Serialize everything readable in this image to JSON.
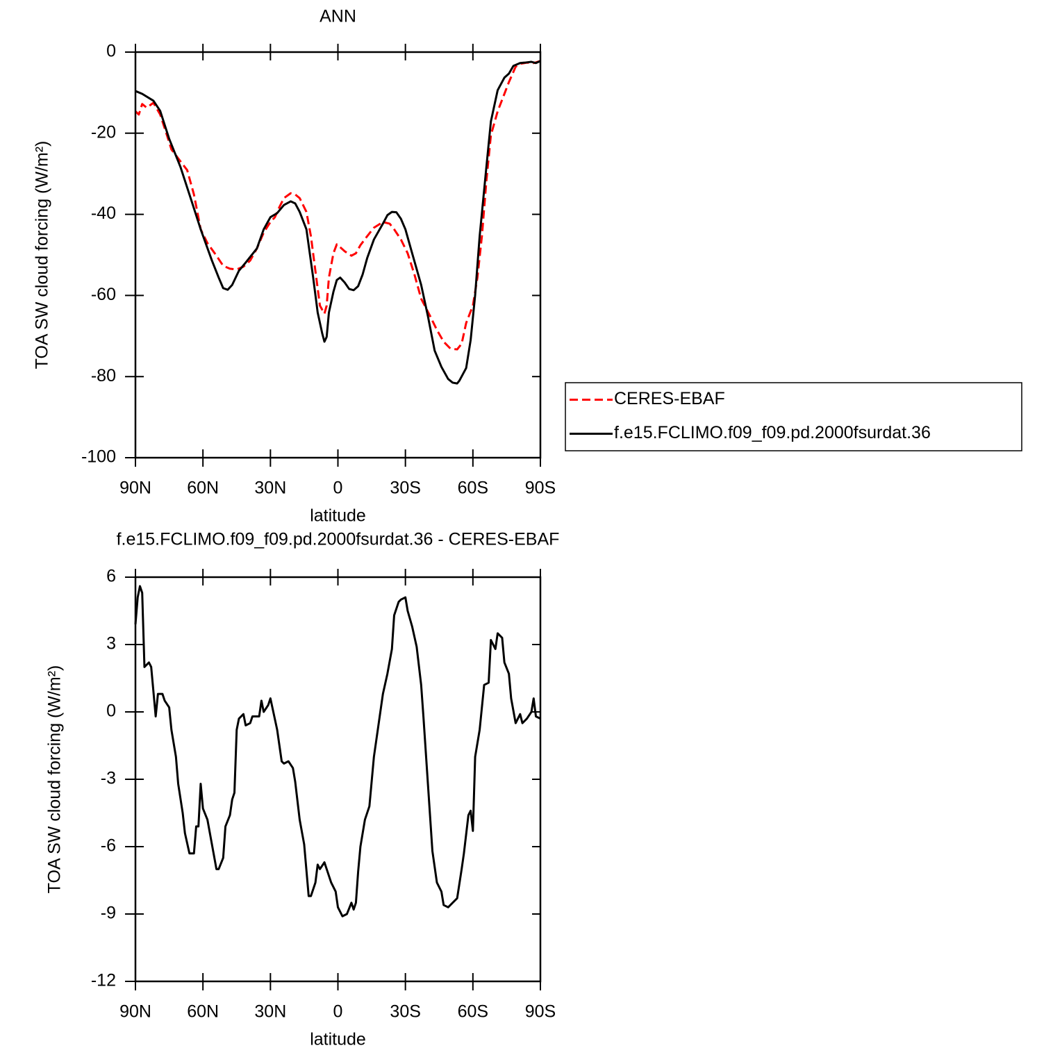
{
  "chart_data": [
    {
      "type": "line",
      "title": "ANN",
      "x_label": "latitude",
      "y_label": "TOA SW cloud forcing (W/m²)",
      "xlim": [
        90,
        -90
      ],
      "xticks": [
        {
          "value": 90,
          "label": "90N"
        },
        {
          "value": 60,
          "label": "60N"
        },
        {
          "value": 30,
          "label": "30N"
        },
        0,
        {
          "value": -30,
          "label": "30S"
        },
        {
          "value": -60,
          "label": "60S"
        },
        {
          "value": -90,
          "label": "90S"
        }
      ],
      "ylim": [
        -100,
        0
      ],
      "yticks": [
        0,
        -20,
        -40,
        -60,
        -80,
        -100
      ],
      "legend": "right",
      "series": [
        {
          "name": "CERES-EBAF",
          "color": "#ff0000",
          "style": "dashed",
          "x": [
            90,
            88.5,
            87,
            85,
            82,
            79,
            76,
            74,
            71,
            67,
            64,
            61,
            58,
            54,
            51,
            48,
            45,
            42,
            39,
            36,
            33,
            30,
            28,
            26,
            24,
            21,
            19,
            17,
            14,
            12,
            10,
            8,
            6,
            5,
            4,
            2,
            0.5,
            -1,
            -3,
            -6,
            -8,
            -10,
            -13,
            -16,
            -20,
            -23,
            -25,
            -28,
            -31,
            -34,
            -37,
            -41,
            -44,
            -47,
            -50,
            -53,
            -55,
            -57,
            -60,
            -62,
            -64,
            -66,
            -68,
            -71,
            -74,
            -76,
            -79,
            -81,
            -84,
            -87,
            -90
          ],
          "values": [
            -14.6,
            -15.4,
            -12.8,
            -13.7,
            -12.5,
            -15.4,
            -20.5,
            -24.0,
            -26.2,
            -29.1,
            -35.1,
            -43.7,
            -47.1,
            -50.2,
            -52.7,
            -53.4,
            -53.6,
            -52.9,
            -51.4,
            -48.4,
            -44.5,
            -41.9,
            -40.7,
            -38.2,
            -36.0,
            -34.8,
            -35.1,
            -36.0,
            -39.4,
            -45.4,
            -54.0,
            -62.5,
            -64.5,
            -62.5,
            -55.6,
            -49.6,
            -47.4,
            -48.1,
            -49.1,
            -50.2,
            -49.6,
            -47.6,
            -45.4,
            -43.3,
            -41.9,
            -42.3,
            -43.7,
            -46.2,
            -49.6,
            -54.8,
            -60.8,
            -65.1,
            -68.5,
            -71.4,
            -73.1,
            -73.3,
            -71.9,
            -66.8,
            -62.5,
            -55.6,
            -45.4,
            -31.7,
            -20.5,
            -14.6,
            -10.3,
            -7.4,
            -3.6,
            -2.9,
            -2.6,
            -2.7,
            -2.2
          ]
        },
        {
          "name": "f.e15.FCLIMO.f09_f09.pd.2000fsurdat.36",
          "color": "#000000",
          "style": "solid",
          "x": [
            90,
            87,
            82,
            79,
            75,
            70,
            65,
            61,
            56,
            53,
            51,
            49,
            47,
            44,
            41,
            36,
            33,
            30,
            27,
            24,
            21,
            19,
            17,
            14,
            11,
            9,
            7,
            6,
            5,
            4,
            2,
            0.5,
            -1,
            -3,
            -5,
            -7,
            -9,
            -11,
            -13,
            -16,
            -20,
            -22,
            -24,
            -26,
            -28,
            -30,
            -33,
            -37,
            -40,
            -43,
            -46,
            -49,
            -51,
            -53,
            -54,
            -57,
            -59,
            -61,
            -63,
            -66,
            -68,
            -71,
            -74,
            -76,
            -78,
            -81,
            -83,
            -86,
            -88,
            -90
          ],
          "values": [
            -9.6,
            -10.3,
            -12.0,
            -14.5,
            -21.4,
            -28.3,
            -36.8,
            -43.7,
            -51.4,
            -55.6,
            -58.2,
            -58.6,
            -57.4,
            -53.9,
            -51.9,
            -48.4,
            -43.7,
            -40.7,
            -39.7,
            -37.7,
            -36.8,
            -37.3,
            -39.4,
            -43.7,
            -55.6,
            -64.2,
            -69.3,
            -71.4,
            -70.2,
            -64.2,
            -59.1,
            -56.2,
            -55.6,
            -56.8,
            -58.4,
            -58.7,
            -57.7,
            -54.8,
            -50.8,
            -46.2,
            -42.3,
            -40.2,
            -39.4,
            -39.5,
            -41.1,
            -43.7,
            -49.6,
            -57.4,
            -65.1,
            -73.6,
            -77.6,
            -80.6,
            -81.5,
            -81.7,
            -81.0,
            -77.9,
            -71.0,
            -59.9,
            -45.4,
            -28.3,
            -17.1,
            -9.4,
            -6.3,
            -5.3,
            -3.4,
            -2.7,
            -2.6,
            -2.4,
            -2.7,
            -2.2
          ]
        }
      ]
    },
    {
      "type": "line",
      "title": "f.e15.FCLIMO.f09_f09.pd.2000fsurdat.36 - CERES-EBAF",
      "x_label": "latitude",
      "y_label": "TOA SW cloud forcing (W/m²)",
      "xlim": [
        90,
        -90
      ],
      "xticks": [
        {
          "value": 90,
          "label": "90N"
        },
        {
          "value": 60,
          "label": "60N"
        },
        {
          "value": 30,
          "label": "30N"
        },
        0,
        {
          "value": -30,
          "label": "30S"
        },
        {
          "value": -60,
          "label": "60S"
        },
        {
          "value": -90,
          "label": "90S"
        }
      ],
      "ylim": [
        -12,
        6
      ],
      "yticks": [
        6,
        3,
        0,
        -3,
        -6,
        -9,
        -12
      ],
      "series": [
        {
          "color": "#000000",
          "style": "solid",
          "x": [
            90,
            89,
            88,
            87,
            86,
            84,
            83,
            81,
            80,
            78,
            77,
            75,
            74,
            72,
            71,
            69,
            68,
            66,
            64,
            63,
            62,
            61,
            60,
            58,
            56,
            54,
            53,
            51,
            50,
            48,
            47,
            46,
            45,
            44,
            42,
            41,
            39,
            38,
            35,
            34,
            33,
            31,
            30,
            27,
            25,
            24,
            22,
            20,
            19,
            17,
            15,
            13,
            12,
            10,
            9,
            8,
            6,
            5,
            3,
            1,
            0,
            -2,
            -4,
            -6,
            -7,
            -8,
            -9,
            -10,
            -12,
            -14,
            -16,
            -18,
            -20,
            -22,
            -24,
            -25,
            -27,
            -28,
            -30,
            -31,
            -33,
            -35,
            -37,
            -38,
            -40,
            -42,
            -44,
            -46,
            -47,
            -49,
            -51,
            -53,
            -55,
            -56,
            -58,
            -59,
            -60,
            -61,
            -63,
            -64,
            -65,
            -67,
            -68,
            -70,
            -71,
            -73,
            -74,
            -76,
            -77,
            -79,
            -81,
            -82,
            -84,
            -86,
            -87,
            -88,
            -90
          ],
          "values": [
            3.9,
            5.1,
            5.6,
            5.3,
            2.0,
            2.2,
            2.0,
            -0.2,
            0.8,
            0.8,
            0.5,
            0.2,
            -0.8,
            -2.0,
            -3.2,
            -4.5,
            -5.4,
            -6.3,
            -6.3,
            -5.1,
            -5.1,
            -3.2,
            -4.3,
            -4.8,
            -5.9,
            -7.0,
            -7.0,
            -6.5,
            -5.1,
            -4.6,
            -3.9,
            -3.6,
            -0.8,
            -0.3,
            -0.1,
            -0.6,
            -0.5,
            -0.2,
            -0.2,
            0.5,
            0.0,
            0.3,
            0.6,
            -0.8,
            -2.2,
            -2.3,
            -2.2,
            -2.5,
            -3.1,
            -4.8,
            -5.9,
            -8.2,
            -8.2,
            -7.6,
            -6.8,
            -7.0,
            -6.7,
            -7.0,
            -7.6,
            -8.0,
            -8.7,
            -9.1,
            -9.0,
            -8.5,
            -8.8,
            -8.5,
            -7.1,
            -6.0,
            -4.8,
            -4.2,
            -2.0,
            -0.6,
            0.8,
            1.7,
            2.8,
            4.3,
            4.9,
            5.0,
            5.1,
            4.5,
            3.8,
            2.9,
            1.2,
            -0.2,
            -3.2,
            -6.2,
            -7.6,
            -8.0,
            -8.6,
            -8.7,
            -8.5,
            -8.3,
            -7.0,
            -6.3,
            -4.6,
            -4.4,
            -5.3,
            -2.0,
            -0.8,
            0.2,
            1.2,
            1.3,
            3.2,
            2.8,
            3.5,
            3.3,
            2.2,
            1.7,
            0.6,
            -0.5,
            -0.1,
            -0.5,
            -0.3,
            0.0,
            0.6,
            -0.2,
            -0.3
          ]
        }
      ]
    }
  ]
}
